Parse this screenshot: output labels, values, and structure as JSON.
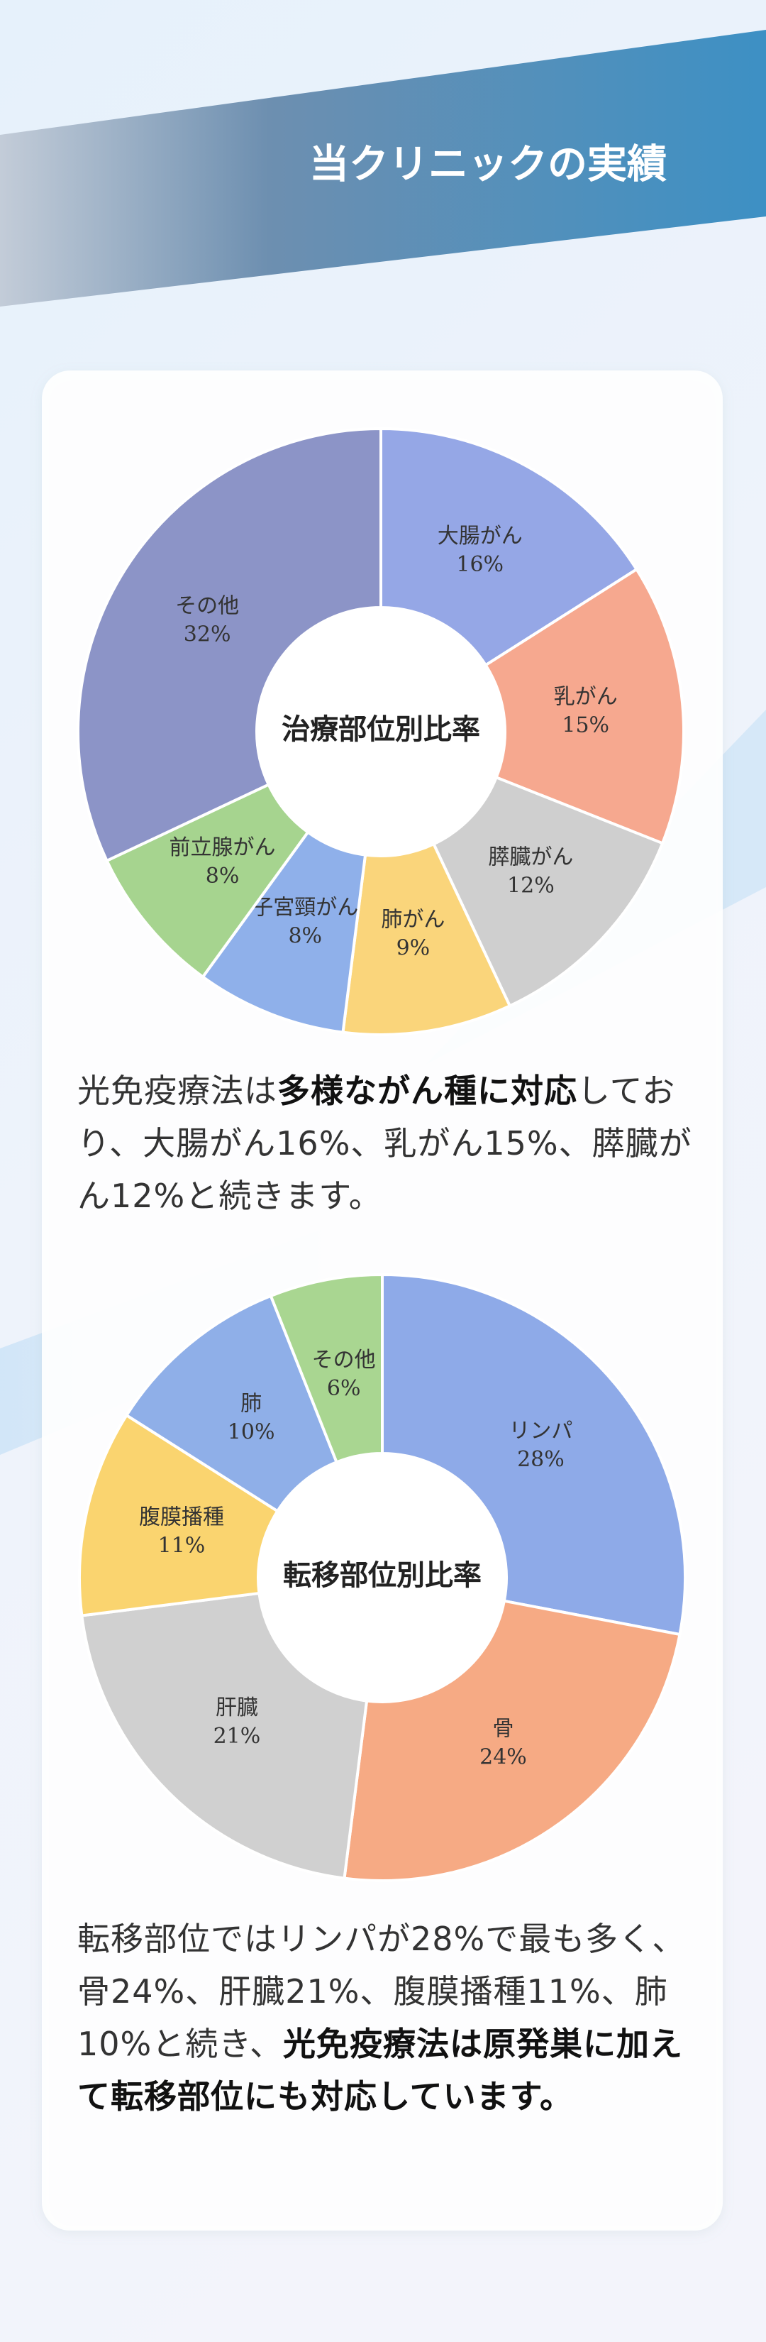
{
  "header": {
    "title": "当クリニックの実績"
  },
  "chart_data": [
    {
      "type": "donut",
      "title": "治療部位別比率",
      "categories": [
        "大腸がん",
        "乳がん",
        "膵臓がん",
        "肺がん",
        "子宮頸がん",
        "前立腺がん",
        "その他"
      ],
      "values": [
        16,
        15,
        12,
        9,
        8,
        8,
        32
      ],
      "value_labels": [
        "16%",
        "15%",
        "12%",
        "9%",
        "8%",
        "8%",
        "32%"
      ],
      "colors": [
        "#95a7e6",
        "#f6a88f",
        "#cfcfcf",
        "#fad57b",
        "#8fb0ea",
        "#a6d48f",
        "#8c94c7"
      ]
    },
    {
      "type": "donut",
      "title": "転移部位別比率",
      "categories": [
        "リンパ",
        "骨",
        "肝臓",
        "腹膜播種",
        "肺",
        "その他"
      ],
      "values": [
        28,
        24,
        21,
        11,
        10,
        6
      ],
      "value_labels": [
        "28%",
        "24%",
        "21%",
        "11%",
        "10%",
        "6%"
      ],
      "colors": [
        "#8eaae8",
        "#f6aa84",
        "#d0d0d0",
        "#fad46f",
        "#8fafe8",
        "#a9d691"
      ]
    }
  ],
  "paragraphs": [
    {
      "segments": [
        {
          "text": "光免疫療法は"
        },
        {
          "text": "多様ながん種に対応",
          "bold": true
        },
        {
          "text": "しており、大腸がん16%、乳がん15%、膵臓がん12%と続きます。"
        }
      ]
    },
    {
      "segments": [
        {
          "text": "転移部位ではリンパが28%で最も多く、骨24%、肝臓21%、腹膜播種11%、肺10%と続き、"
        },
        {
          "text": "光免疫療法は原発巣に加えて転移部位にも対応しています。",
          "bold": true
        }
      ]
    }
  ]
}
